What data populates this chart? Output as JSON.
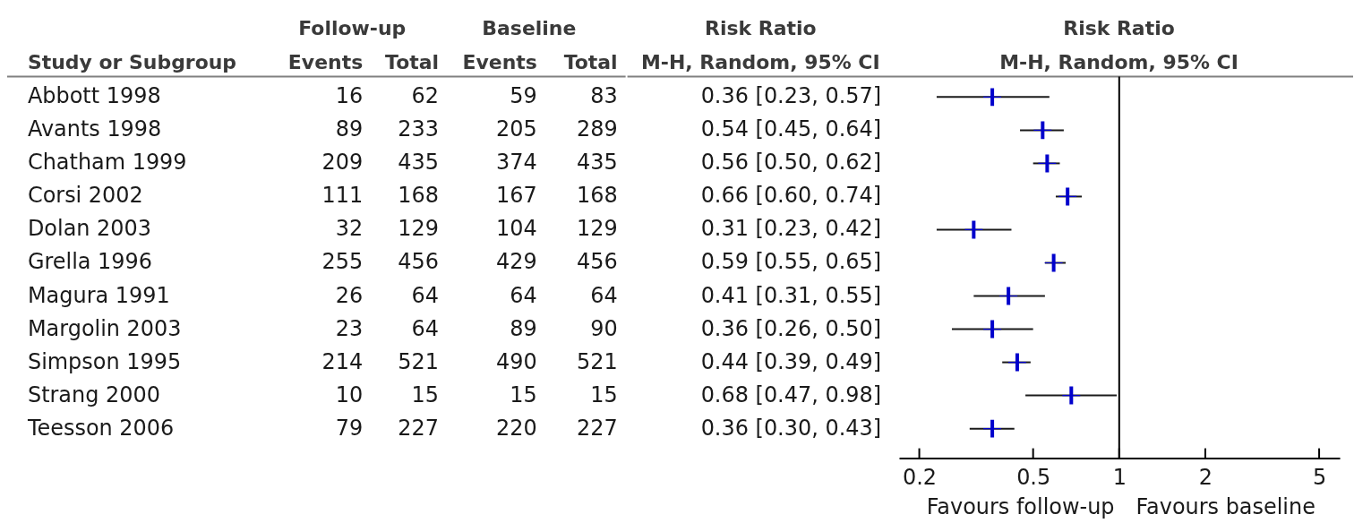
{
  "chart_data": [
    {
      "type": "other",
      "ylabel": "Study or Subgroup",
      "annotations": [
        "Follow-up",
        "Baseline"
      ],
      "categories": [
        "Abbott 1998",
        "Avants 1998",
        "Chatham 1999",
        "Corsi 2002",
        "Dolan 2003",
        "Grella 1996",
        "Magura 1991",
        "Margolin 2003",
        "Simpson 1995",
        "Strang 2000",
        "Teesson 2006"
      ],
      "series": [
        {
          "name": "Events",
          "values": [
            16,
            89,
            209,
            111,
            32,
            255,
            26,
            23,
            214,
            10,
            79
          ]
        },
        {
          "name": "Total",
          "values": [
            62,
            233,
            435,
            168,
            129,
            456,
            64,
            64,
            521,
            15,
            227
          ]
        },
        {
          "name": "Events",
          "values": [
            59,
            205,
            374,
            167,
            104,
            429,
            64,
            89,
            490,
            15,
            220
          ]
        },
        {
          "name": "Total",
          "values": [
            83,
            289,
            435,
            168,
            129,
            456,
            64,
            90,
            521,
            15,
            227
          ]
        }
      ],
      "data_labels": true
    },
    {
      "type": "scatter",
      "title": "Risk Ratio",
      "subtitle": "M-H, Random, 95% CI",
      "annotations": [
        "Risk Ratio",
        "M-H, Random, 95% CI",
        "Favours follow-up",
        "Favours baseline"
      ],
      "categories": [
        null,
        null,
        null,
        null,
        null,
        null,
        null,
        null,
        null,
        null,
        null
      ],
      "tick_labels": "x",
      "orientation": "horizontal",
      "color": "#0000cc",
      "marker": "cross",
      "values": [
        0.36,
        0.54,
        0.56,
        0.66,
        0.31,
        0.59,
        0.41,
        0.36,
        0.44,
        0.68,
        0.36
      ],
      "errors": [
        [
          0.23,
          0.57
        ],
        [
          0.45,
          0.64
        ],
        [
          0.5,
          0.62
        ],
        [
          0.6,
          0.74
        ],
        [
          0.23,
          0.42
        ],
        [
          0.55,
          0.65
        ],
        [
          0.31,
          0.55
        ],
        [
          0.26,
          0.5
        ],
        [
          0.39,
          0.49
        ],
        [
          0.47,
          0.98
        ],
        [
          0.3,
          0.43
        ]
      ],
      "value_labels": [
        "0.36 [0.23, 0.57]",
        "0.54 [0.45, 0.64]",
        "0.56 [0.50, 0.62]",
        "0.66 [0.60, 0.74]",
        "0.31 [0.23, 0.42]",
        "0.59 [0.55, 0.65]",
        "0.41 [0.31, 0.55]",
        "0.36 [0.26, 0.50]",
        "0.44 [0.39, 0.49]",
        "0.68 [0.47, 0.98]",
        "0.36 [0.30, 0.43]"
      ],
      "log": "x",
      "xlim": [
        0.17,
        5.9
      ],
      "xticks": [
        0.2,
        0.5,
        1,
        2,
        5
      ],
      "ref_lines": [
        {
          "axis": "x",
          "value": 1,
          "color": "#000000"
        }
      ]
    }
  ]
}
